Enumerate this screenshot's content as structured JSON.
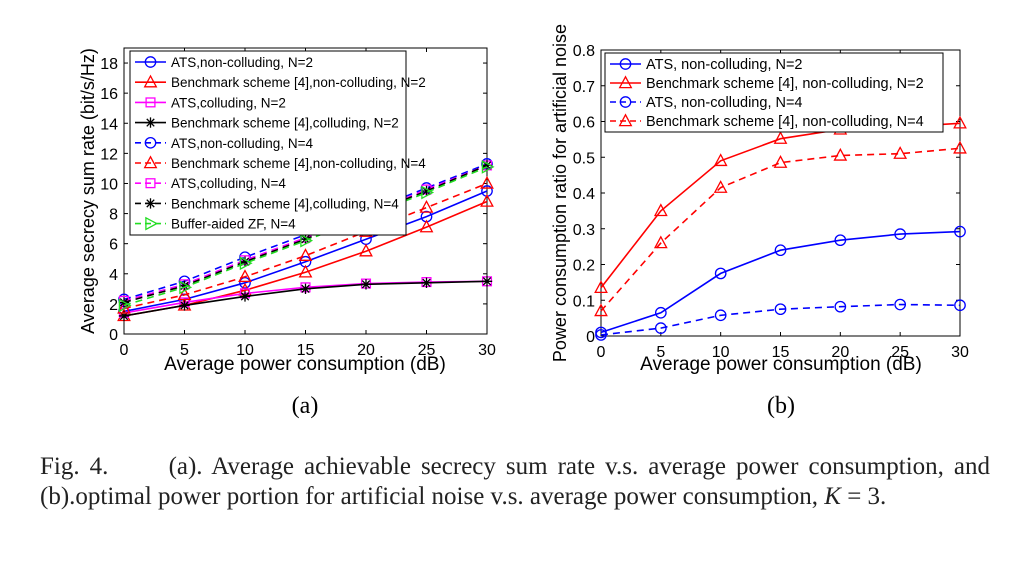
{
  "chart_data": [
    {
      "type": "line",
      "panel_label": "(a)",
      "xlabel": "Average power consumption (dB)",
      "ylabel": "Average secrecy sum rate (bit/s/Hz)",
      "xlim": [
        0,
        30
      ],
      "ylim": [
        0,
        19
      ],
      "xticks": [
        "0",
        "5",
        "10",
        "15",
        "20",
        "25",
        "30"
      ],
      "yticks": [
        "0",
        "2",
        "4",
        "6",
        "8",
        "10",
        "12",
        "14",
        "16",
        "18"
      ],
      "grid": false,
      "legend_position": "top-left",
      "x": [
        0,
        5,
        10,
        15,
        20,
        25,
        30
      ],
      "series": [
        {
          "name": "ATS,non-colluding, N=2",
          "color": "#0000ff",
          "dash": "solid",
          "marker": "circle",
          "values": [
            1.5,
            2.3,
            3.4,
            4.8,
            6.3,
            7.8,
            9.5
          ]
        },
        {
          "name": "Benchmark scheme [4],non-colluding, N=2",
          "color": "#ff0000",
          "dash": "solid",
          "marker": "triangle",
          "values": [
            1.2,
            1.9,
            2.9,
            4.1,
            5.5,
            7.1,
            8.8
          ]
        },
        {
          "name": "ATS,colluding, N=2",
          "color": "#ff00ff",
          "dash": "solid",
          "marker": "square",
          "values": [
            1.4,
            2.1,
            2.7,
            3.1,
            3.35,
            3.45,
            3.5
          ]
        },
        {
          "name": "Benchmark scheme [4],colluding, N=2",
          "color": "#000000",
          "dash": "solid",
          "marker": "star",
          "values": [
            1.2,
            1.9,
            2.5,
            3.0,
            3.3,
            3.4,
            3.5
          ]
        },
        {
          "name": "ATS,non-colluding, N=4",
          "color": "#0000ff",
          "dash": "dashed",
          "marker": "circle",
          "values": [
            2.3,
            3.5,
            5.1,
            6.6,
            8.1,
            9.7,
            11.3
          ]
        },
        {
          "name": "Benchmark scheme [4],non-colluding, N=4",
          "color": "#ff0000",
          "dash": "dashed",
          "marker": "triangle",
          "values": [
            1.7,
            2.6,
            3.8,
            5.2,
            6.8,
            8.4,
            10.0
          ]
        },
        {
          "name": "ATS,colluding, N=4",
          "color": "#ff00ff",
          "dash": "dashed",
          "marker": "square",
          "values": [
            2.2,
            3.3,
            4.9,
            6.4,
            7.9,
            9.6,
            11.2
          ]
        },
        {
          "name": "Benchmark scheme [4],colluding, N=4",
          "color": "#000000",
          "dash": "dashed",
          "marker": "star",
          "values": [
            2.1,
            3.2,
            4.8,
            6.3,
            7.9,
            9.5,
            11.2
          ]
        },
        {
          "name": "Buffer-aided ZF, N=4",
          "color": "#22dd22",
          "dash": "dashed",
          "marker": "triangle-right",
          "values": [
            1.9,
            3.1,
            4.7,
            6.2,
            7.8,
            9.4,
            11.1
          ]
        }
      ]
    },
    {
      "type": "line",
      "panel_label": "(b)",
      "xlabel": "Average power consumption (dB)",
      "ylabel": "Power consumption ratio for artificial noise",
      "xlim": [
        0,
        30
      ],
      "ylim": [
        0,
        0.8
      ],
      "xticks": [
        "0",
        "5",
        "10",
        "15",
        "20",
        "25",
        "30"
      ],
      "yticks": [
        "0",
        "0.1",
        "0.2",
        "0.3",
        "0.4",
        "0.5",
        "0.6",
        "0.7",
        "0.8"
      ],
      "grid": false,
      "legend_position": "top-left",
      "x": [
        0,
        5,
        10,
        15,
        20,
        25,
        30
      ],
      "series": [
        {
          "name": "ATS, non-colluding, N=2",
          "color": "#0000ff",
          "dash": "solid",
          "marker": "circle",
          "values": [
            0.01,
            0.065,
            0.175,
            0.24,
            0.268,
            0.285,
            0.292
          ]
        },
        {
          "name": "Benchmark scheme [4], non-colluding, N=2",
          "color": "#ff0000",
          "dash": "solid",
          "marker": "triangle",
          "values": [
            0.135,
            0.35,
            0.49,
            0.552,
            0.578,
            0.585,
            0.595
          ]
        },
        {
          "name": "ATS, non-colluding, N=4",
          "color": "#0000ff",
          "dash": "dashed",
          "marker": "circle",
          "values": [
            0.003,
            0.022,
            0.058,
            0.075,
            0.082,
            0.088,
            0.086
          ]
        },
        {
          "name": "Benchmark scheme [4], non-colluding, N=4",
          "color": "#ff0000",
          "dash": "dashed",
          "marker": "triangle",
          "values": [
            0.07,
            0.26,
            0.415,
            0.485,
            0.505,
            0.51,
            0.525
          ]
        }
      ]
    }
  ],
  "caption": {
    "label": "Fig. 4.",
    "text": "(a). Average achievable secrecy sum rate v.s. average power consumption, and (b).optimal power portion for artificial noise v.s. average power consumption,",
    "math_var": "K",
    "math_rest": "= 3."
  }
}
